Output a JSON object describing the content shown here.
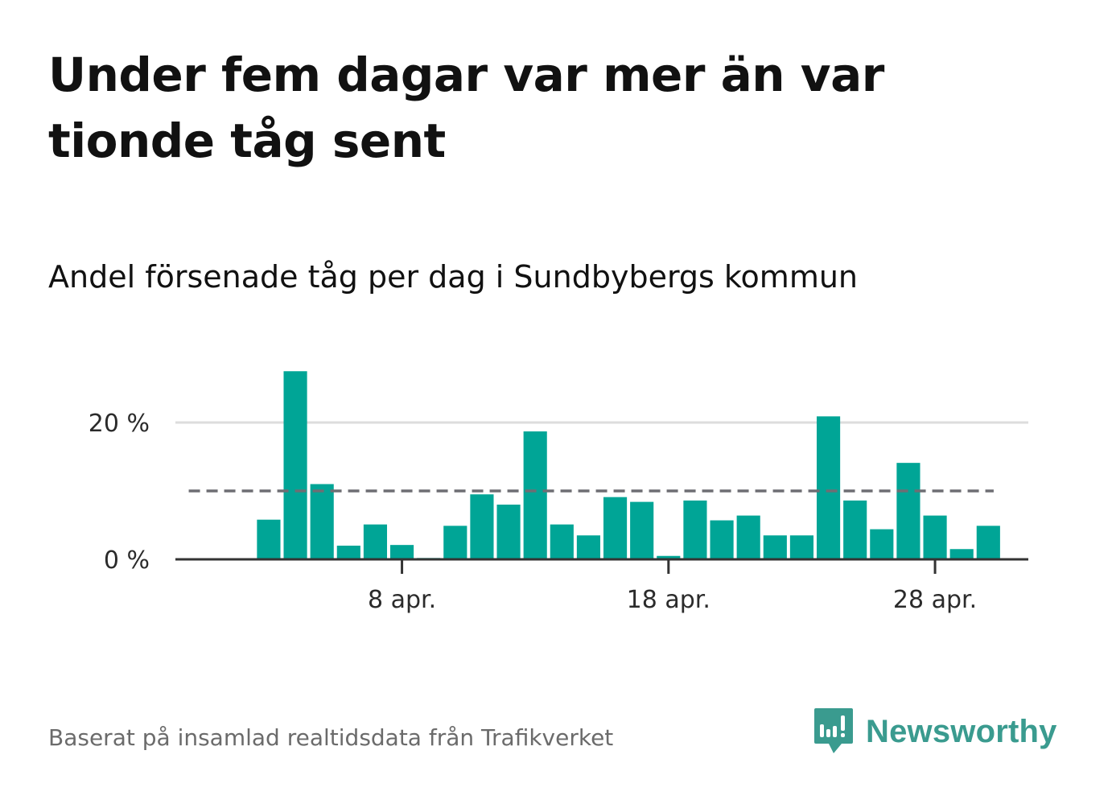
{
  "header": {
    "title": "Under fem dagar var mer än var tionde tåg sent",
    "subtitle": "Andel försenade tåg per dag i Sundbybergs kommun"
  },
  "footer": {
    "source": "Baserat på insamlad realtidsdata från Trafikverket",
    "brand": "Newsworthy"
  },
  "colors": {
    "bar": "#00A596",
    "threshold": "#6e6e73",
    "gridline": "#dddddd",
    "axis": "#333333",
    "brand": "#3a9b8f"
  },
  "chart_data": {
    "type": "bar",
    "title": "Andel försenade tåg per dag i Sundbybergs kommun",
    "xlabel": "",
    "ylabel": "",
    "unit": "%",
    "categories": [
      "1 apr.",
      "2 apr.",
      "3 apr.",
      "4 apr.",
      "5 apr.",
      "6 apr.",
      "7 apr.",
      "8 apr.",
      "9 apr.",
      "10 apr.",
      "11 apr.",
      "12 apr.",
      "13 apr.",
      "14 apr.",
      "15 apr.",
      "16 apr.",
      "17 apr.",
      "18 apr.",
      "19 apr.",
      "20 apr.",
      "21 apr.",
      "22 apr.",
      "23 apr.",
      "24 apr.",
      "25 apr.",
      "26 apr.",
      "27 apr.",
      "28 apr.",
      "29 apr.",
      "30 apr."
    ],
    "values": [
      null,
      null,
      5.8,
      27.5,
      11.0,
      2.0,
      5.1,
      2.1,
      0.2,
      4.9,
      9.5,
      8.0,
      18.7,
      5.1,
      3.5,
      9.1,
      8.4,
      0.5,
      8.6,
      5.7,
      6.4,
      3.5,
      3.5,
      20.9,
      8.6,
      4.4,
      14.1,
      6.4,
      1.5,
      4.9
    ],
    "xticks": [
      {
        "day": 8,
        "label": "8 apr."
      },
      {
        "day": 18,
        "label": "18 apr."
      },
      {
        "day": 28,
        "label": "28 apr."
      }
    ],
    "yticks": [
      {
        "value": 0,
        "label": "0 %"
      },
      {
        "value": 20,
        "label": "20 %"
      }
    ],
    "ylim": [
      0,
      30
    ],
    "xlim": [
      -0.5,
      31.5
    ],
    "threshold": {
      "value": 10,
      "label": ""
    },
    "gridlines": true,
    "legend": "none"
  }
}
